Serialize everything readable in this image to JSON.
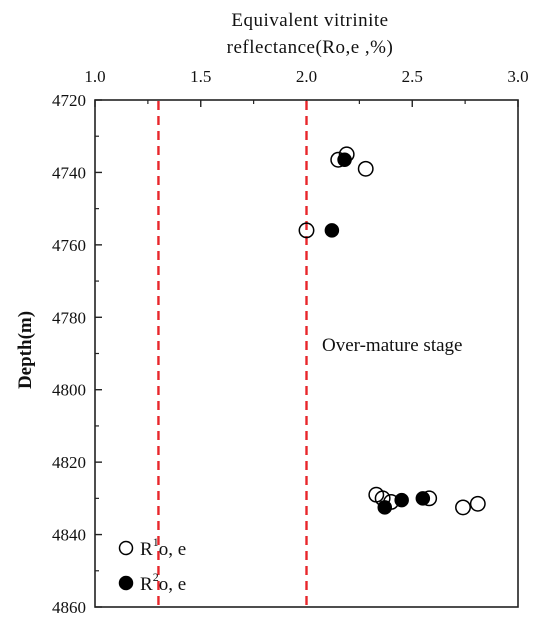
{
  "chart_data": {
    "type": "scatter",
    "title_line1": "Equivalent  vitrinite",
    "title_line2": "reflectance(Ro,e ,%)",
    "xlabel": "",
    "ylabel": "Depth(m)",
    "xlim": [
      1.0,
      3.0
    ],
    "ylim": [
      4720,
      4860
    ],
    "y_inverted": true,
    "x_axis_position": "top",
    "x_ticks": [
      1.0,
      1.5,
      2.0,
      2.5,
      3.0
    ],
    "x_tick_labels": [
      "1.0",
      "1.5",
      "2.0",
      "2.5",
      "3.0"
    ],
    "y_ticks": [
      4720,
      4740,
      4760,
      4780,
      4800,
      4820,
      4840,
      4860
    ],
    "y_tick_labels": [
      "4720",
      "4740",
      "4760",
      "4780",
      "4800",
      "4820",
      "4840",
      "4860"
    ],
    "grid": false,
    "reference_lines": [
      {
        "x": 1.3,
        "color": "#e8262b",
        "style": "dashed"
      },
      {
        "x": 2.0,
        "color": "#e8262b",
        "style": "dashed"
      }
    ],
    "annotation": "Over-mature stage",
    "legend_position": "bottom-left",
    "series": [
      {
        "name": "R1o,e",
        "legend_main": "R",
        "legend_sup": "1",
        "legend_sub": "o, e",
        "marker": "open-circle",
        "points": [
          {
            "x": 2.15,
            "y": 4736.5
          },
          {
            "x": 2.19,
            "y": 4735.0
          },
          {
            "x": 2.28,
            "y": 4739.0
          },
          {
            "x": 2.0,
            "y": 4756.0
          },
          {
            "x": 2.33,
            "y": 4829.0
          },
          {
            "x": 2.36,
            "y": 4830.0
          },
          {
            "x": 2.4,
            "y": 4831.0
          },
          {
            "x": 2.58,
            "y": 4830.0
          },
          {
            "x": 2.74,
            "y": 4832.5
          },
          {
            "x": 2.81,
            "y": 4831.5
          }
        ]
      },
      {
        "name": "R2o,e",
        "legend_main": "R",
        "legend_sup": "2",
        "legend_sub": "o, e",
        "marker": "filled-circle",
        "points": [
          {
            "x": 2.18,
            "y": 4736.5
          },
          {
            "x": 2.12,
            "y": 4756.0
          },
          {
            "x": 2.37,
            "y": 4832.5
          },
          {
            "x": 2.45,
            "y": 4830.5
          },
          {
            "x": 2.55,
            "y": 4830.0
          }
        ]
      }
    ]
  }
}
